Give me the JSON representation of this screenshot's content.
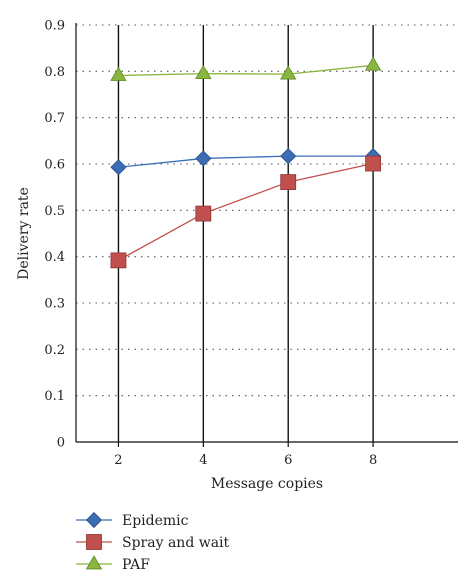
{
  "chart_data": {
    "type": "line",
    "title": "",
    "xlabel": "Message copies",
    "ylabel": "Delivery rate",
    "x": [
      2,
      4,
      6,
      8
    ],
    "x_ticks": [
      "2",
      "4",
      "6",
      "8"
    ],
    "xlim": [
      1,
      10
    ],
    "ylim": [
      0,
      0.9
    ],
    "y_ticks": [
      "0",
      "0.1",
      "0.2",
      "0.3",
      "0.4",
      "0.5",
      "0.6",
      "0.7",
      "0.8",
      "0.9"
    ],
    "grid": "horizontal dotted",
    "legend_position": "bottom-left",
    "series": [
      {
        "name": "Epidemic",
        "values": [
          0.593,
          0.612,
          0.617,
          0.617
        ],
        "color": "#3a6db4",
        "marker": "diamond"
      },
      {
        "name": "Spray and wait",
        "values": [
          0.392,
          0.493,
          0.561,
          0.601
        ],
        "color": "#c0504d",
        "marker": "square"
      },
      {
        "name": "PAF",
        "values": [
          0.791,
          0.795,
          0.794,
          0.813
        ],
        "color": "#8ab540",
        "marker": "triangle"
      }
    ]
  }
}
